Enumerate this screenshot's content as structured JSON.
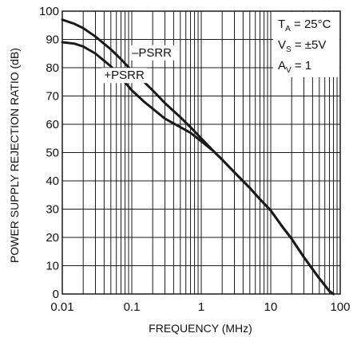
{
  "chart_data": {
    "type": "line",
    "title": "",
    "xlabel": "FREQUENCY (MHz)",
    "ylabel": "POWER SUPPLY REJECTION RATIO (dB)",
    "x_scale": "log",
    "xlim": [
      0.01,
      100
    ],
    "ylim": [
      0,
      100
    ],
    "grid": true,
    "x_ticks": [
      {
        "value": 0.01,
        "label": "0.01"
      },
      {
        "value": 0.1,
        "label": "0.1"
      },
      {
        "value": 1,
        "label": "1"
      },
      {
        "value": 10,
        "label": "10"
      },
      {
        "value": 100,
        "label": "100"
      }
    ],
    "y_ticks": [
      {
        "value": 0,
        "label": "0"
      },
      {
        "value": 10,
        "label": "10"
      },
      {
        "value": 20,
        "label": "20"
      },
      {
        "value": 30,
        "label": "30"
      },
      {
        "value": 40,
        "label": "40"
      },
      {
        "value": 50,
        "label": "50"
      },
      {
        "value": 60,
        "label": "60"
      },
      {
        "value": 70,
        "label": "70"
      },
      {
        "value": 80,
        "label": "80"
      },
      {
        "value": 90,
        "label": "90"
      },
      {
        "value": 100,
        "label": "100"
      }
    ],
    "series": [
      {
        "name": "–PSRR",
        "x": [
          0.01,
          0.015,
          0.02,
          0.03,
          0.05,
          0.07,
          0.1,
          0.15,
          0.2,
          0.3,
          0.5,
          0.7,
          1,
          1.5,
          2,
          3,
          5,
          7,
          10,
          15,
          20,
          30,
          50,
          70,
          80
        ],
        "y": [
          97,
          95.5,
          94,
          91,
          86.5,
          83,
          79,
          75,
          72,
          67.5,
          62.5,
          59,
          55,
          50.5,
          47.5,
          43,
          37.5,
          33.5,
          29.5,
          23.5,
          19.5,
          13,
          5.5,
          1,
          0
        ]
      },
      {
        "name": "+PSRR",
        "x": [
          0.01,
          0.015,
          0.02,
          0.03,
          0.05,
          0.07,
          0.1,
          0.15,
          0.2,
          0.3,
          0.5,
          0.7,
          1,
          1.5,
          2,
          3,
          5,
          7,
          10,
          15,
          20,
          30,
          50,
          70,
          80
        ],
        "y": [
          89,
          88.5,
          87.5,
          85,
          80.5,
          76.5,
          72,
          68,
          65.5,
          62,
          59,
          57,
          54,
          50.5,
          47.5,
          43,
          37.5,
          33.5,
          29.5,
          23.5,
          19.5,
          13,
          5.5,
          1,
          0
        ]
      }
    ],
    "annotations": [
      {
        "text": "–PSRR",
        "x": 0.1,
        "y": 84
      },
      {
        "text": "+PSRR",
        "x": 0.04,
        "y": 76
      }
    ],
    "conditions": [
      {
        "main": "T",
        "sub": "A",
        "rest": " = 25°C"
      },
      {
        "main": "V",
        "sub": "S",
        "rest": " = ±5V"
      },
      {
        "main": "A",
        "sub": "V",
        "rest": " = 1"
      }
    ],
    "colors": {
      "line": "#1a1a1a",
      "grid": "#1a1a1a",
      "background": "#ffffff"
    }
  }
}
